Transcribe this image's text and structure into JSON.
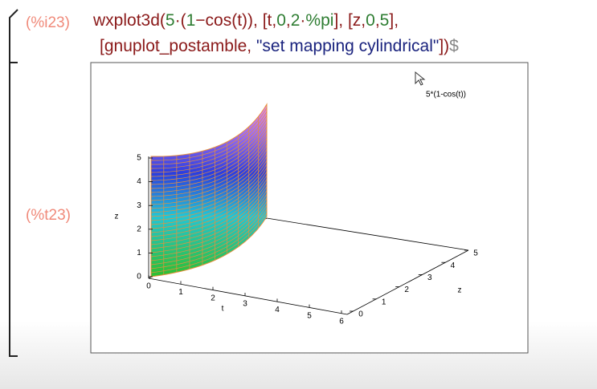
{
  "input": {
    "label": "(%i23)",
    "line1": [
      {
        "text": "wxplot3d(",
        "color": "#8b1a1a"
      },
      {
        "text": "5",
        "color": "#2e7d32"
      },
      {
        "text": "·(",
        "color": "#8b1a1a"
      },
      {
        "text": "1",
        "color": "#2e7d32"
      },
      {
        "text": "−cos(t)), [t,",
        "color": "#8b1a1a"
      },
      {
        "text": "0",
        "color": "#2e7d32"
      },
      {
        "text": ",",
        "color": "#8b1a1a"
      },
      {
        "text": "2",
        "color": "#2e7d32"
      },
      {
        "text": "·",
        "color": "#8b1a1a"
      },
      {
        "text": "%pi",
        "color": "#2e7d32"
      },
      {
        "text": "], [z,",
        "color": "#8b1a1a"
      },
      {
        "text": "0",
        "color": "#2e7d32"
      },
      {
        "text": ",",
        "color": "#8b1a1a"
      },
      {
        "text": "5",
        "color": "#2e7d32"
      },
      {
        "text": "],",
        "color": "#8b1a1a"
      }
    ],
    "line2": [
      {
        "text": "[gnuplot_postamble, ",
        "color": "#8b1a1a"
      },
      {
        "text": "\"set mapping cylindrical\"",
        "color": "#1a237e"
      },
      {
        "text": "])",
        "color": "#8b1a1a"
      },
      {
        "text": "$",
        "color": "#888888"
      }
    ]
  },
  "output": {
    "label": "(%t23)",
    "plot": {
      "legend": "5*(1-cos(t))",
      "vertical_axis": {
        "label": "z",
        "ticks": [
          "0",
          "1",
          "2",
          "3",
          "4",
          "5"
        ]
      },
      "t_axis": {
        "label": "t",
        "ticks": [
          "0",
          "1",
          "2",
          "3",
          "4",
          "5",
          "6"
        ]
      },
      "z_axis": {
        "label": "z",
        "ticks": [
          "0",
          "1",
          "2",
          "3",
          "4",
          "5"
        ]
      }
    }
  }
}
